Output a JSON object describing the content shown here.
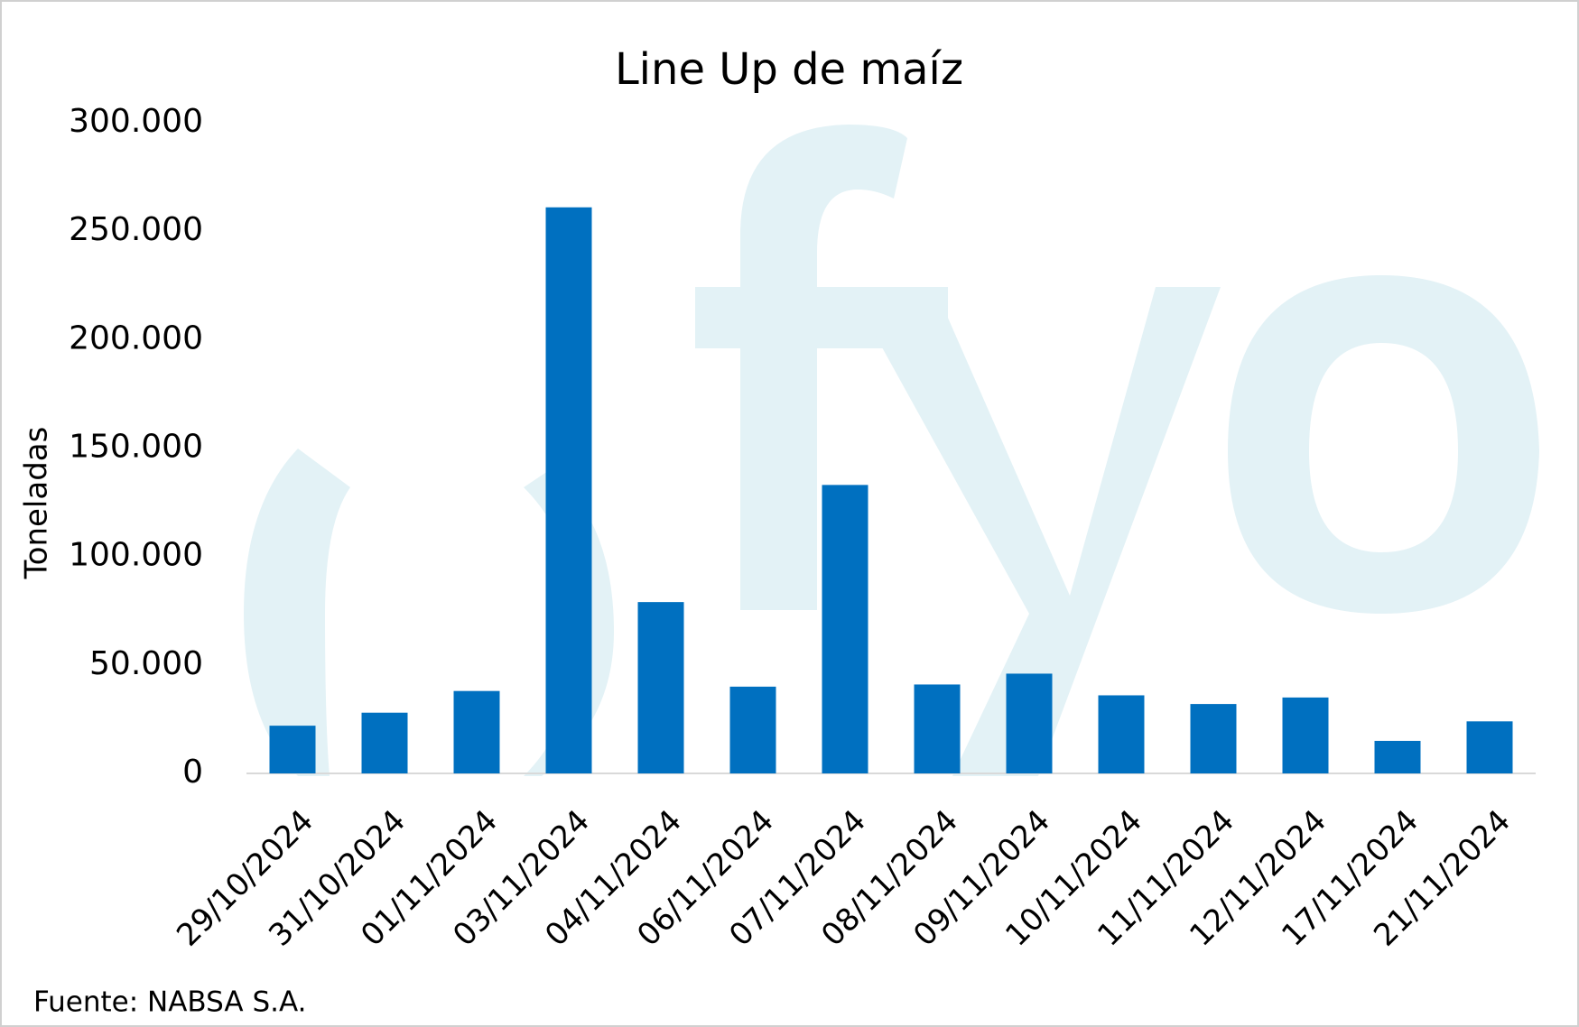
{
  "chart_data": {
    "type": "bar",
    "title": "Line Up de maíz",
    "y_label": "Toneladas",
    "source": "Fuente: NABSA S.A.",
    "categories": [
      "29/10/2024",
      "31/10/2024",
      "01/11/2024",
      "03/11/2024",
      "04/11/2024",
      "06/11/2024",
      "07/11/2024",
      "08/11/2024",
      "09/11/2024",
      "10/11/2024",
      "11/11/2024",
      "12/11/2024",
      "17/11/2024",
      "21/11/2024"
    ],
    "values": [
      22000,
      28000,
      38000,
      261000,
      79000,
      40000,
      133000,
      41000,
      46000,
      36000,
      32000,
      35000,
      15000,
      24000
    ],
    "color": "#0070c0",
    "ylim": [
      0,
      300000
    ],
    "yticks": [
      0,
      {
        "value": 50000,
        "label": "50.000"
      },
      {
        "value": 100000,
        "label": "100.000"
      },
      {
        "value": 150000,
        "label": "150.000"
      },
      {
        "value": 200000,
        "label": "200.000"
      },
      {
        "value": 250000,
        "label": "250.000"
      },
      {
        "value": 300000,
        "label": "300.000"
      }
    ],
    "grid": false
  }
}
